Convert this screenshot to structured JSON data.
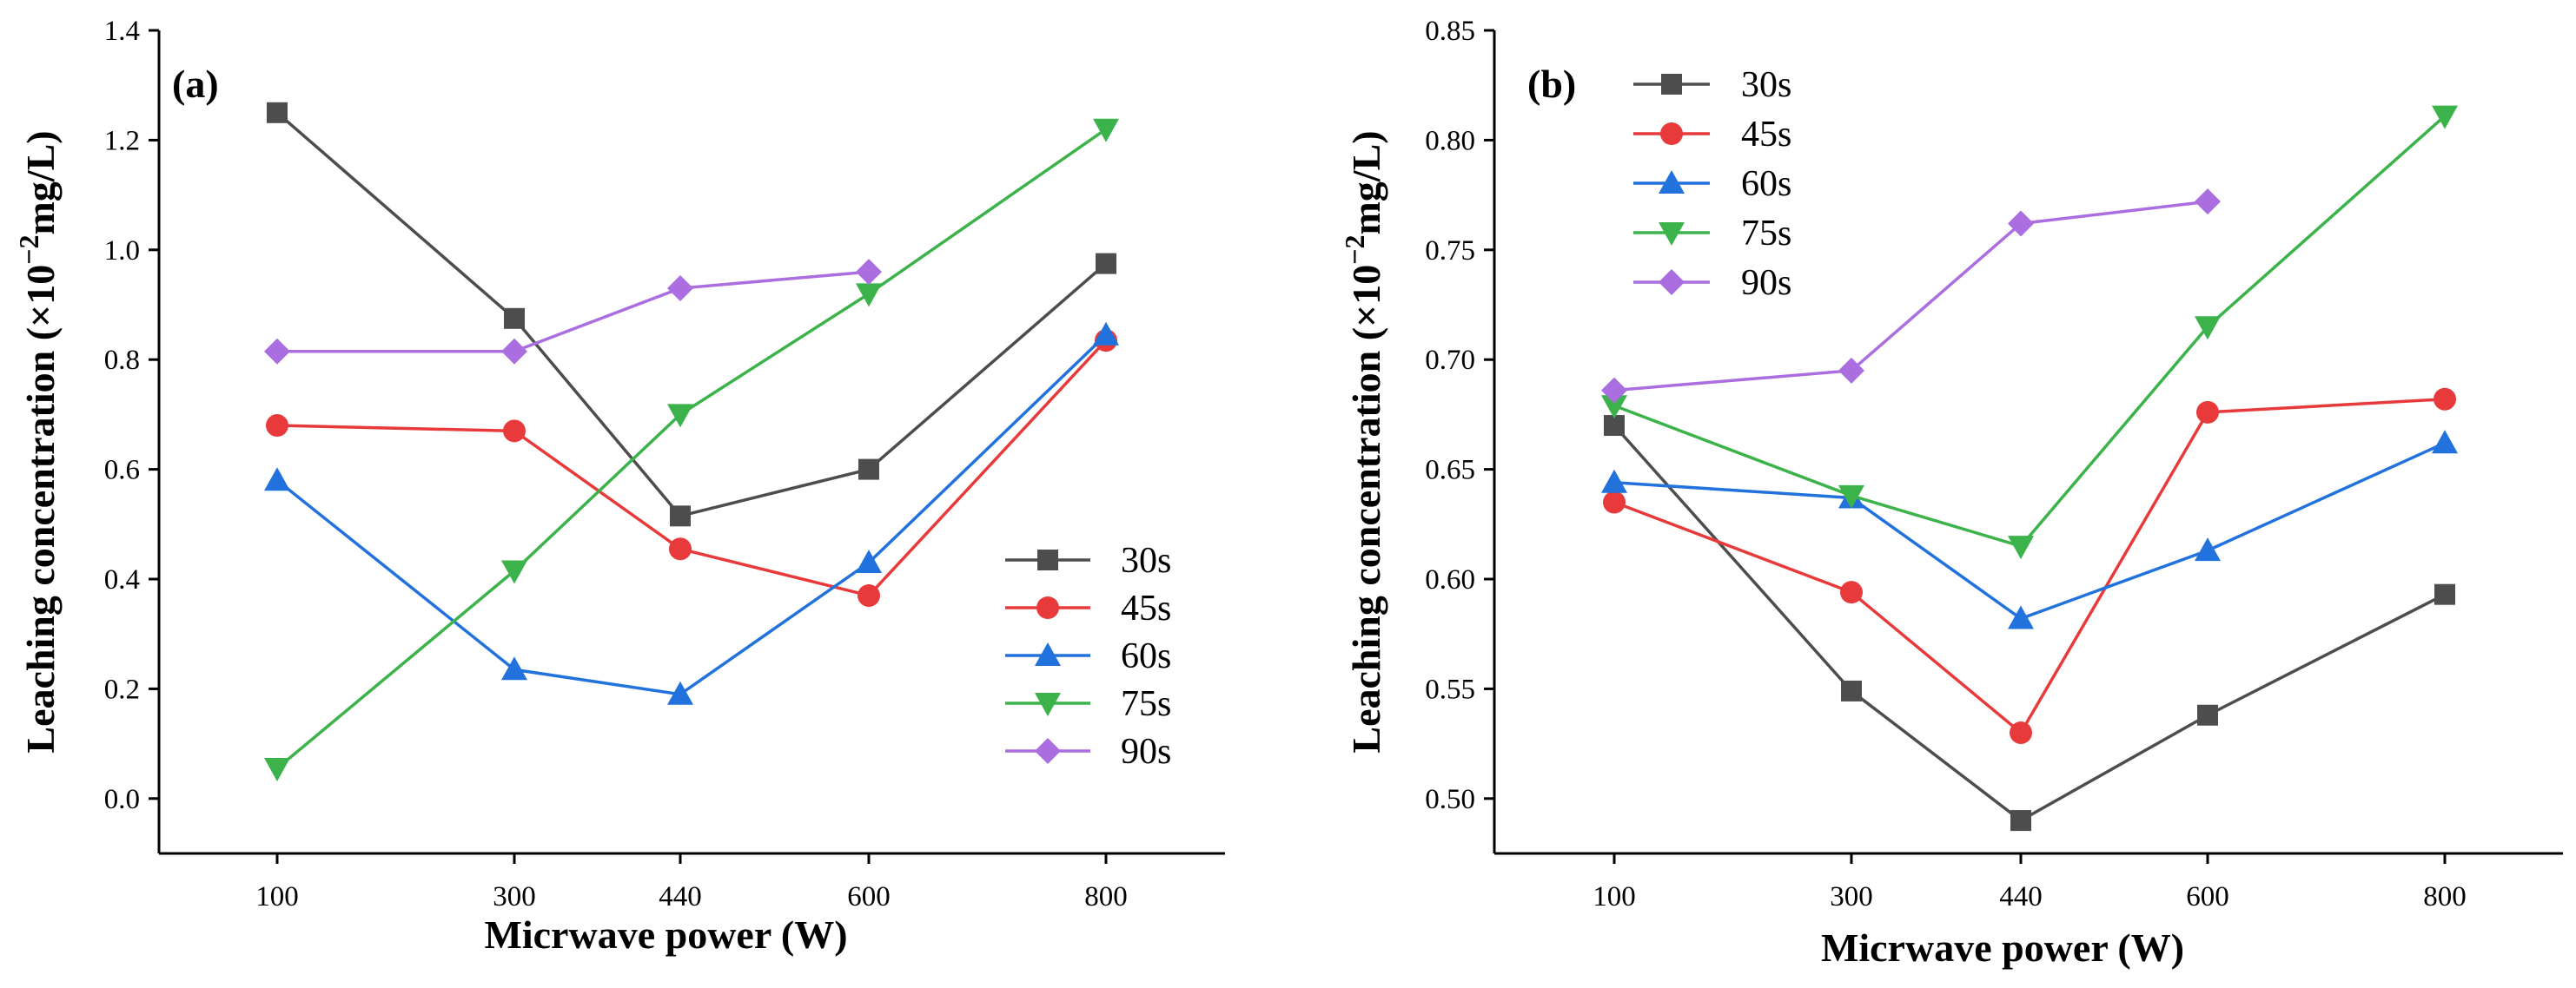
{
  "figure": {
    "colors": {
      "30s": "#4d4d4d",
      "45s": "#e83a3a",
      "60s": "#2272dd",
      "75s": "#3cb34a",
      "90s": "#aa6ee0",
      "axis": "#000000"
    }
  },
  "chart_data": [
    {
      "type": "line",
      "panel_label": "(a)",
      "xlabel": "Micrwave power (W)",
      "ylabel_prefix": "Leaching concentration (×10",
      "ylabel_exp": "−2",
      "ylabel_suffix": "mg/L)",
      "categories": [
        "100",
        "300",
        "440",
        "600",
        "800"
      ],
      "ylim": [
        -0.1,
        1.4
      ],
      "yticks": [
        0.0,
        0.2,
        0.4,
        0.6,
        0.8,
        1.0,
        1.2,
        1.4
      ],
      "ytick_labels": [
        "0.0",
        "0.2",
        "0.4",
        "0.6",
        "0.8",
        "1.0",
        "1.2",
        "1.4"
      ],
      "legend_position": "bottom-right",
      "series": [
        {
          "name": "30s",
          "marker": "square",
          "color": "#4d4d4d",
          "values": [
            1.25,
            0.875,
            0.515,
            0.6,
            0.975
          ]
        },
        {
          "name": "45s",
          "marker": "circle",
          "color": "#e83a3a",
          "values": [
            0.68,
            0.67,
            0.455,
            0.37,
            0.835
          ]
        },
        {
          "name": "60s",
          "marker": "triangle-up",
          "color": "#2272dd",
          "values": [
            0.58,
            0.235,
            0.19,
            0.43,
            0.845
          ]
        },
        {
          "name": "75s",
          "marker": "triangle-down",
          "color": "#3cb34a",
          "values": [
            0.055,
            0.415,
            0.7,
            0.92,
            1.22
          ]
        },
        {
          "name": "90s",
          "marker": "diamond",
          "color": "#aa6ee0",
          "values": [
            0.815,
            0.815,
            0.93,
            0.96,
            null
          ]
        }
      ]
    },
    {
      "type": "line",
      "panel_label": "(b)",
      "xlabel": "Micrwave power (W)",
      "ylabel_prefix": "Leaching concentration (×10",
      "ylabel_exp": "−2",
      "ylabel_suffix": "mg/L)",
      "categories": [
        "100",
        "300",
        "440",
        "600",
        "800"
      ],
      "ylim": [
        0.475,
        0.85
      ],
      "yticks": [
        0.5,
        0.55,
        0.6,
        0.65,
        0.7,
        0.75,
        0.8,
        0.85
      ],
      "ytick_labels": [
        "0.50",
        "0.55",
        "0.60",
        "0.65",
        "0.70",
        "0.75",
        "0.80",
        "0.85"
      ],
      "legend_position": "top-left",
      "series": [
        {
          "name": "30s",
          "marker": "square",
          "color": "#4d4d4d",
          "values": [
            0.67,
            0.549,
            0.49,
            0.538,
            0.593
          ]
        },
        {
          "name": "45s",
          "marker": "circle",
          "color": "#e83a3a",
          "values": [
            0.635,
            0.594,
            0.53,
            0.676,
            0.682
          ]
        },
        {
          "name": "60s",
          "marker": "triangle-up",
          "color": "#2272dd",
          "values": [
            0.644,
            0.637,
            0.582,
            0.613,
            0.662
          ]
        },
        {
          "name": "75s",
          "marker": "triangle-down",
          "color": "#3cb34a",
          "values": [
            0.679,
            0.638,
            0.615,
            0.715,
            0.811
          ]
        },
        {
          "name": "90s",
          "marker": "diamond",
          "color": "#aa6ee0",
          "values": [
            0.686,
            0.695,
            0.762,
            0.772,
            null
          ]
        }
      ]
    }
  ]
}
